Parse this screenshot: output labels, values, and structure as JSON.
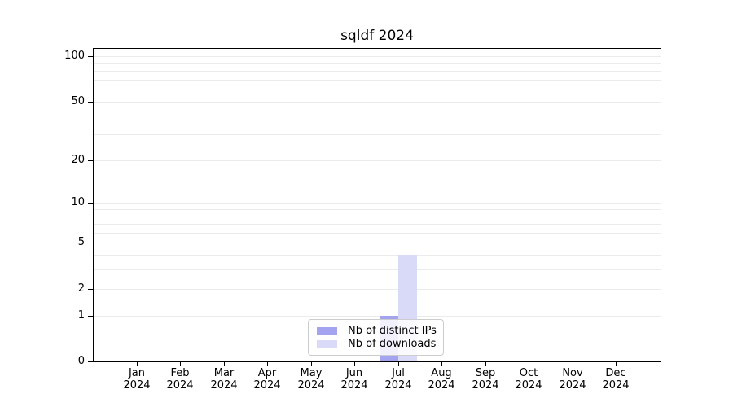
{
  "chart_data": {
    "type": "bar",
    "title": "sqldf 2024",
    "xlabel": "",
    "ylabel": "",
    "categories": [
      "Jan 2024",
      "Feb 2024",
      "Mar 2024",
      "Apr 2024",
      "May 2024",
      "Jun 2024",
      "Jul 2024",
      "Aug 2024",
      "Sep 2024",
      "Oct 2024",
      "Nov 2024",
      "Dec 2024"
    ],
    "x_tick_line1": [
      "Jan",
      "Feb",
      "Mar",
      "Apr",
      "May",
      "Jun",
      "Jul",
      "Aug",
      "Sep",
      "Oct",
      "Nov",
      "Dec"
    ],
    "x_tick_line2": [
      "2024",
      "2024",
      "2024",
      "2024",
      "2024",
      "2024",
      "2024",
      "2024",
      "2024",
      "2024",
      "2024",
      "2024"
    ],
    "series": [
      {
        "name": "Nb of distinct IPs",
        "color": "#a3a3f0",
        "values": [
          0,
          0,
          0,
          0,
          0,
          0,
          1,
          0,
          0,
          0,
          0,
          0
        ]
      },
      {
        "name": "Nb of downloads",
        "color": "#d9d9f8",
        "values": [
          0,
          0,
          0,
          0,
          0,
          0,
          4,
          0,
          0,
          0,
          0,
          0
        ]
      }
    ],
    "y_axis": {
      "scale": "log1p",
      "range": [
        0,
        112
      ],
      "tick_values": [
        0,
        1,
        2,
        5,
        10,
        20,
        50,
        100
      ],
      "tick_labels": [
        "0",
        "1",
        "2",
        "5",
        "10",
        "20",
        "50",
        "100"
      ],
      "grid_values": [
        1,
        2,
        3,
        4,
        5,
        6,
        7,
        8,
        9,
        10,
        20,
        30,
        40,
        50,
        60,
        70,
        80,
        90,
        100
      ]
    },
    "grid": true,
    "legend": {
      "position": "lower center",
      "entries": [
        "Nb of distinct IPs",
        "Nb of downloads"
      ]
    },
    "colors": {
      "grid": "#ebebeb",
      "spine": "#000000",
      "text": "#000000",
      "legend_border": "#cccccc"
    }
  }
}
